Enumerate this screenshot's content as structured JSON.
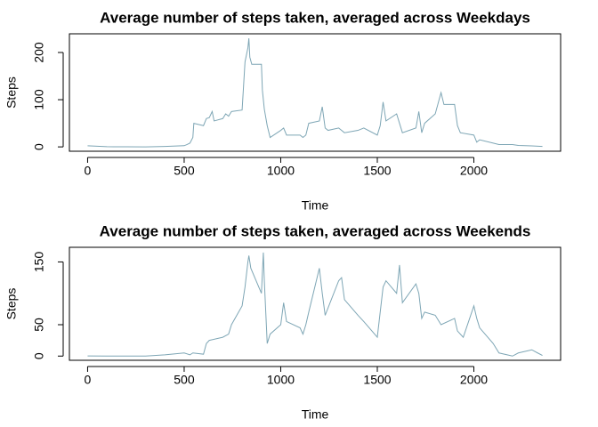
{
  "chart_data": [
    {
      "type": "line",
      "title": "Average number of steps taken, averaged across Weekdays",
      "x_label": "Time",
      "y_label": "Steps",
      "x": [
        0,
        100,
        200,
        300,
        400,
        500,
        515,
        530,
        545,
        550,
        600,
        615,
        630,
        645,
        655,
        700,
        715,
        730,
        745,
        800,
        815,
        830,
        835,
        840,
        850,
        900,
        905,
        915,
        930,
        945,
        1000,
        1015,
        1030,
        1100,
        1115,
        1130,
        1145,
        1200,
        1215,
        1230,
        1245,
        1300,
        1330,
        1400,
        1430,
        1500,
        1515,
        1530,
        1545,
        1600,
        1630,
        1700,
        1715,
        1730,
        1745,
        1800,
        1830,
        1845,
        1900,
        1915,
        1930,
        2000,
        2015,
        2030,
        2100,
        2130,
        2200,
        2230,
        2300,
        2355
      ],
      "series": [
        {
          "name": "Steps",
          "color": "#7ea6b5",
          "values": [
            2.3,
            0.4,
            0.2,
            0,
            1,
            2.5,
            5,
            8,
            20,
            50,
            45,
            60,
            62,
            75,
            55,
            60,
            70,
            65,
            75,
            78,
            180,
            210,
            230,
            190,
            175,
            175,
            120,
            80,
            45,
            20,
            35,
            40,
            25,
            25,
            20,
            25,
            50,
            55,
            85,
            40,
            35,
            40,
            30,
            35,
            40,
            25,
            45,
            95,
            55,
            70,
            30,
            40,
            75,
            30,
            50,
            70,
            115,
            90,
            90,
            45,
            30,
            25,
            10,
            15,
            8,
            5,
            5,
            3,
            2,
            1
          ]
        }
      ],
      "xlim": [
        -94.2,
        2449.2
      ],
      "ylim": [
        -9.2,
        239.6
      ],
      "xticks": [
        0,
        500,
        1000,
        1500,
        2000
      ],
      "yticks": [
        0,
        100,
        200
      ]
    },
    {
      "type": "line",
      "title": "Average number of steps taken, averaged across Weekends",
      "x_label": "Time",
      "y_label": "Steps",
      "x": [
        0,
        100,
        300,
        400,
        500,
        530,
        545,
        600,
        615,
        630,
        700,
        730,
        745,
        800,
        815,
        830,
        835,
        845,
        900,
        910,
        915,
        930,
        945,
        1000,
        1015,
        1030,
        1100,
        1115,
        1130,
        1145,
        1200,
        1215,
        1230,
        1300,
        1315,
        1330,
        1400,
        1430,
        1500,
        1530,
        1545,
        1600,
        1615,
        1630,
        1700,
        1715,
        1730,
        1745,
        1800,
        1830,
        1900,
        1915,
        1945,
        2000,
        2015,
        2030,
        2100,
        2130,
        2200,
        2230,
        2300,
        2330,
        2355
      ],
      "series": [
        {
          "name": "Steps",
          "color": "#7ea6b5",
          "values": [
            0.2,
            0,
            0,
            2,
            5,
            2,
            5,
            3,
            20,
            25,
            30,
            35,
            50,
            80,
            110,
            150,
            160,
            140,
            100,
            165,
            120,
            20,
            35,
            50,
            85,
            55,
            45,
            35,
            50,
            70,
            140,
            100,
            65,
            120,
            125,
            90,
            65,
            55,
            30,
            110,
            120,
            100,
            145,
            85,
            115,
            100,
            60,
            70,
            65,
            50,
            60,
            40,
            30,
            80,
            60,
            45,
            20,
            5,
            0,
            5,
            10,
            5,
            1
          ]
        }
      ],
      "xlim": [
        -94.2,
        2449.2
      ],
      "ylim": [
        -6.7,
        173.3
      ],
      "xticks": [
        0,
        500,
        1000,
        1500,
        2000
      ],
      "yticks": [
        0,
        50,
        150
      ]
    }
  ]
}
